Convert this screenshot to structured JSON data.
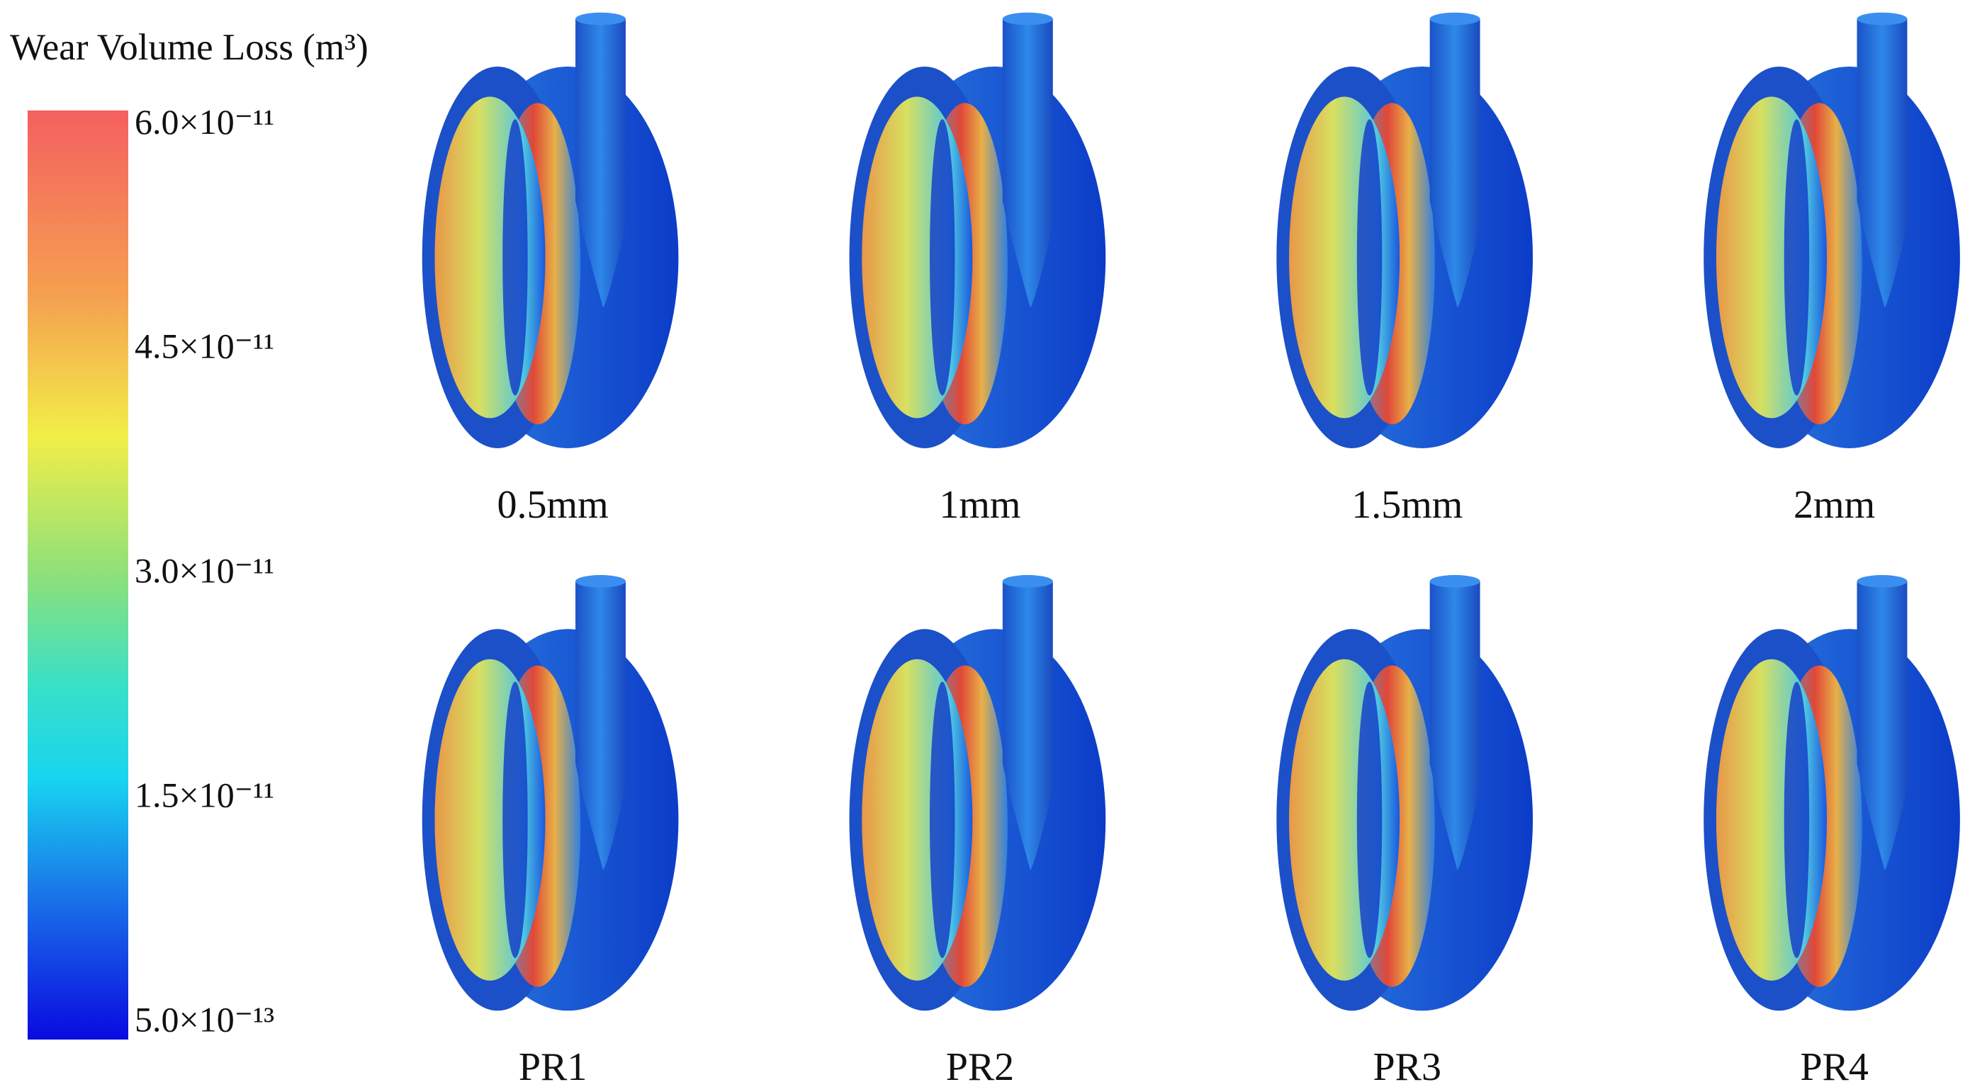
{
  "colorbar": {
    "title": "Wear Volume Loss (m³)",
    "ticks": [
      "6.0×10⁻¹¹",
      "4.5×10⁻¹¹",
      "3.0×10⁻¹¹",
      "1.5×10⁻¹¹",
      "5.0×10⁻¹³"
    ]
  },
  "panels": [
    {
      "label": "0.5mm"
    },
    {
      "label": "1mm"
    },
    {
      "label": "1.5mm"
    },
    {
      "label": "2mm"
    },
    {
      "label": "PR1"
    },
    {
      "label": "PR2"
    },
    {
      "label": "PR3"
    },
    {
      "label": "PR4"
    }
  ]
}
